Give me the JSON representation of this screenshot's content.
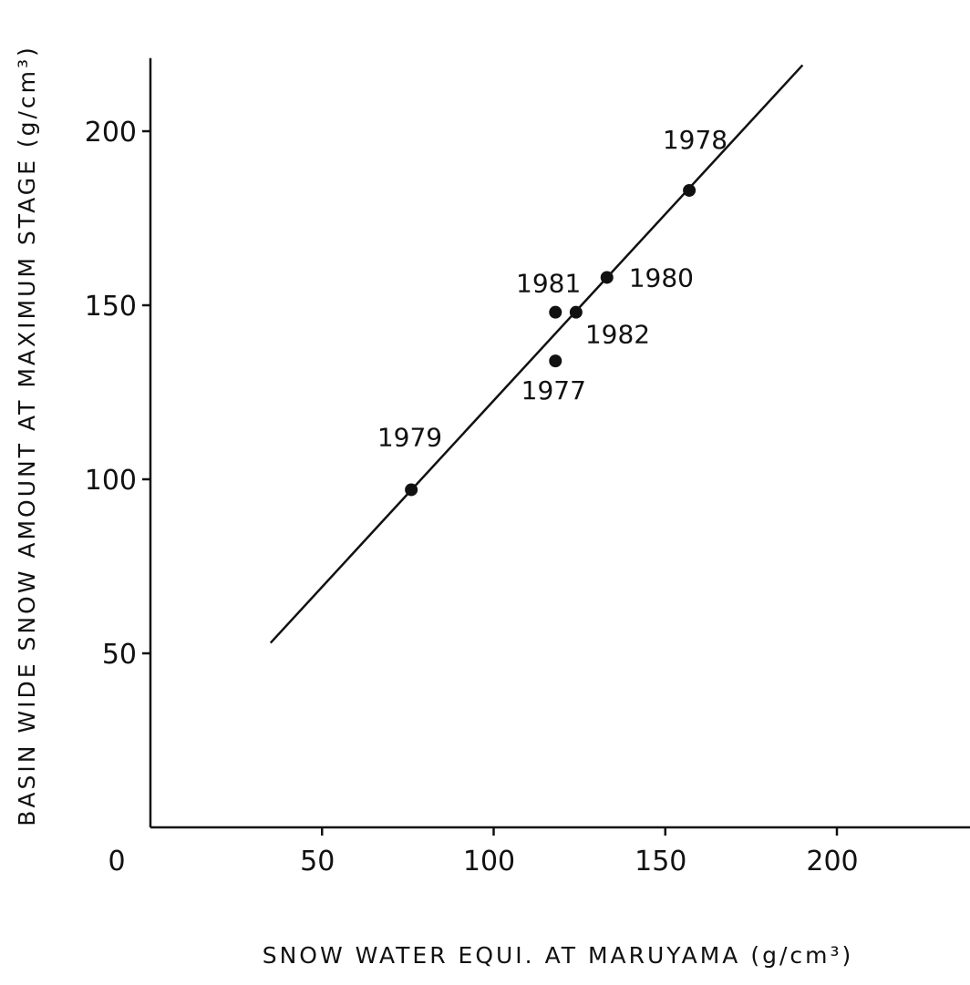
{
  "chart_data": {
    "type": "scatter",
    "xlabel": "SNOW WATER EQUI. AT MARUYAMA (g/cm³)",
    "ylabel": "BASIN WIDE SNOW AMOUNT AT MAXIMUM STAGE (g/cm³)",
    "xlim": [
      0,
      240
    ],
    "ylim": [
      0,
      220
    ],
    "x_ticks": [
      0,
      50,
      100,
      150,
      200
    ],
    "y_ticks": [
      50,
      100,
      150,
      200
    ],
    "x_tick_labels": [
      "0",
      "50",
      "100",
      "150",
      "200"
    ],
    "y_tick_labels": [
      "50",
      "100",
      "150",
      "200"
    ],
    "grid": false,
    "points": [
      {
        "label": "1977",
        "x": 118,
        "y": 134
      },
      {
        "label": "1978",
        "x": 157,
        "y": 183
      },
      {
        "label": "1979",
        "x": 76,
        "y": 97
      },
      {
        "label": "1980",
        "x": 133,
        "y": 158
      },
      {
        "label": "1981",
        "x": 118,
        "y": 148
      },
      {
        "label": "1982",
        "x": 124,
        "y": 148
      }
    ],
    "fit_line": {
      "x": [
        35,
        190
      ],
      "y": [
        53,
        219
      ]
    },
    "colors": {
      "ink": "#111111",
      "background": "#ffffff"
    }
  }
}
